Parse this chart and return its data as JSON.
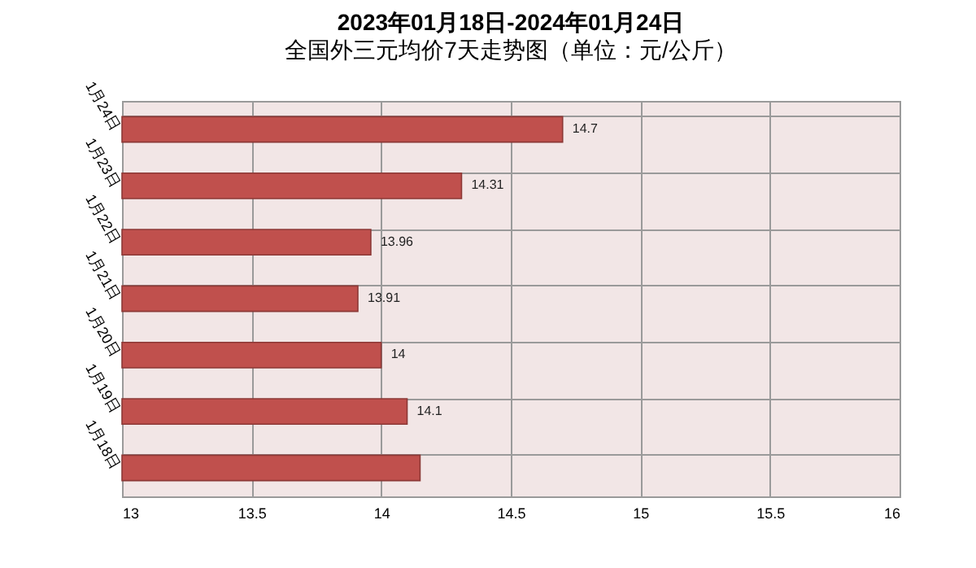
{
  "chart_data": {
    "type": "bar",
    "orientation": "horizontal",
    "title": "2023年01月18日-2024年01月24日",
    "subtitle": "全国外三元均价7天走势图（单位：元/公斤）",
    "categories": [
      "1月24日",
      "1月23日",
      "1月22日",
      "1月21日",
      "1月20日",
      "1月19日",
      "1月18日"
    ],
    "values": [
      14.7,
      14.31,
      13.96,
      13.91,
      14,
      14.1,
      14.15
    ],
    "value_labels": [
      "14.7",
      "14.31",
      "13.96",
      "13.91",
      "14",
      "14.1",
      null
    ],
    "color": "#c0504d",
    "xlim": [
      13,
      16
    ],
    "xticks": [
      13,
      13.5,
      14,
      14.5,
      15,
      15.5,
      16
    ],
    "grid": true
  }
}
